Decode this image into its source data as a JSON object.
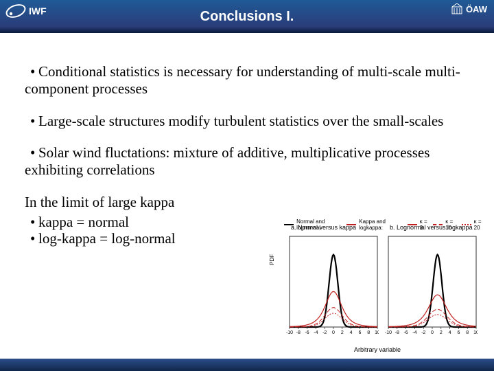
{
  "header": {
    "title": "Conclusions I.",
    "logo_left_text": "IWF",
    "logo_right_text": "ÖAW",
    "bg_gradient_top": "#1f5a96",
    "bg_gradient_bottom": "#0a1a3a"
  },
  "bullets": [
    "Conditional statistics is necessary for understanding of multi-scale multi-component processes",
    "Large-scale structures modify turbulent statistics over the small-scales",
    "Solar wind fluctations: mixture of additive, multiplicative processes exhibiting correlations"
  ],
  "limit_text": "In the limit of large kappa",
  "sub_bullets": [
    "kappa = normal",
    "log-kappa = log-normal"
  ],
  "chart": {
    "type": "line",
    "ylabel": "PDF",
    "xlabel": "Arbitrary variable",
    "legend_items": [
      {
        "label": "Normal and lognormal",
        "color": "#000000"
      },
      {
        "label": "Kappa and logkappa:",
        "color": "#c02020"
      },
      {
        "label": "κ = 3",
        "color": "#c02020",
        "dash": "solid"
      },
      {
        "label": "κ = 10",
        "color": "#c02020",
        "dash": "dashed"
      },
      {
        "label": "κ = 20",
        "color": "#c02020",
        "dash": "dotted"
      }
    ],
    "panels": [
      {
        "title": "a. Normal versus kappa",
        "xlim": [
          -10,
          10
        ],
        "ylim": [
          0,
          0.5
        ],
        "xticks": [
          -10,
          -8,
          -6,
          -4,
          -2,
          0,
          2,
          4,
          6,
          8,
          10
        ],
        "series": [
          {
            "color": "#000000",
            "width": 2.2,
            "type": "normal",
            "mu": 0,
            "sigma": 2.0
          },
          {
            "color": "#c02020",
            "width": 1.2,
            "type": "kappa",
            "kappa": 3,
            "scale": 2.0
          },
          {
            "color": "#c02020",
            "width": 1.0,
            "type": "kappa",
            "kappa": 10,
            "scale": 2.0,
            "dash": "6,3"
          },
          {
            "color": "#c02020",
            "width": 1.0,
            "type": "kappa",
            "kappa": 20,
            "scale": 2.0,
            "dash": "2,2"
          }
        ]
      },
      {
        "title": "b. Lognormal versus logkappa",
        "xlim": [
          -10,
          10
        ],
        "ylim": [
          0,
          0.5
        ],
        "xticks": [
          -10,
          -8,
          -6,
          -4,
          -2,
          0,
          2,
          4,
          6,
          8,
          10
        ],
        "series": [
          {
            "color": "#000000",
            "width": 2.2,
            "type": "normal",
            "mu": 1.2,
            "sigma": 2.2
          },
          {
            "color": "#c02020",
            "width": 1.2,
            "type": "kappa",
            "kappa": 3,
            "scale": 2.2,
            "mu": 1.2
          },
          {
            "color": "#c02020",
            "width": 1.0,
            "type": "kappa",
            "kappa": 10,
            "scale": 2.2,
            "mu": 1.2,
            "dash": "6,3"
          },
          {
            "color": "#c02020",
            "width": 1.0,
            "type": "kappa",
            "kappa": 20,
            "scale": 2.2,
            "mu": 1.2,
            "dash": "2,2"
          }
        ]
      }
    ],
    "axis_color": "#000000",
    "background_color": "#ffffff",
    "font_size_labels": 9,
    "font_size_ticks": 7
  },
  "footer": {
    "bg_gradient_top": "#2a4d8a",
    "bg_gradient_bottom": "#12264a"
  }
}
